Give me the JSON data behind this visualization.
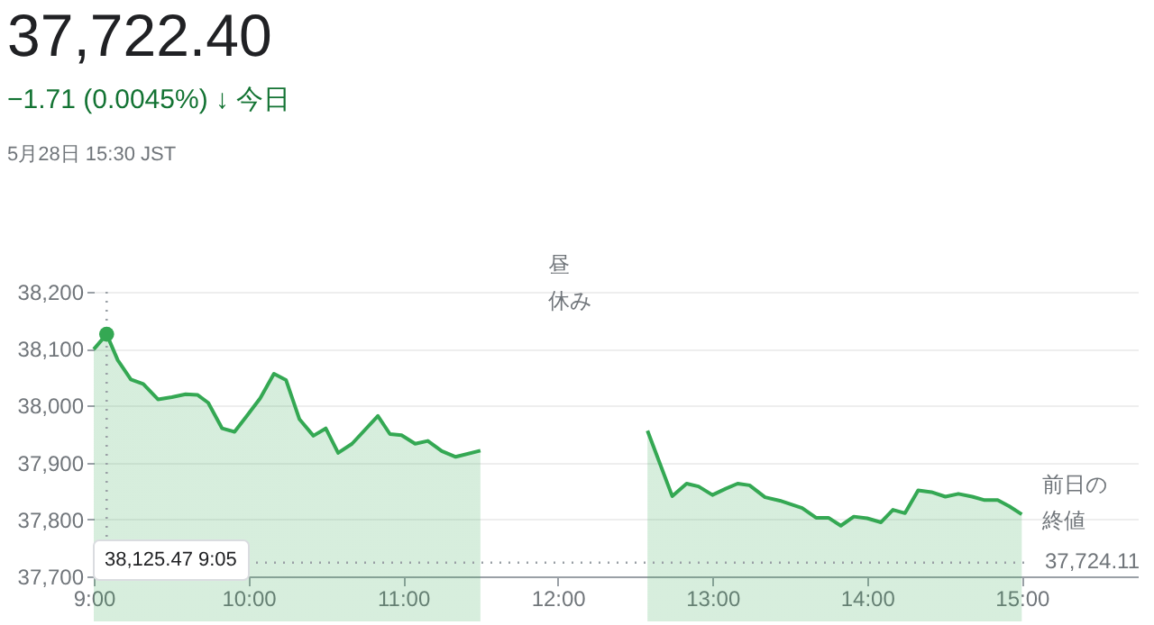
{
  "chart_data": {
    "type": "area",
    "title": "37,722.40",
    "subtitle": "−1.71 (0.0045%) ↓ 今日",
    "annotations": [
      "5月28日 15:30 JST",
      "昼休み",
      "前日の終値",
      "38,125.47 9:05"
    ],
    "series": [
      {
        "type": "area",
        "color": "#34a853",
        "x": [
          9.0,
          9.0833,
          9.155,
          9.24,
          9.32,
          9.415,
          9.505,
          9.594,
          9.67,
          9.74,
          9.83,
          9.91,
          9.99,
          10.076,
          10.165,
          10.243,
          10.33,
          10.42,
          10.5,
          10.58,
          10.67,
          10.837,
          10.915,
          10.99,
          11.078,
          11.16,
          11.25,
          11.34,
          11.5,
          12.0,
          12.58,
          12.74,
          12.833,
          12.91,
          13.0,
          13.086,
          13.163,
          13.24,
          13.34,
          13.436,
          13.58,
          13.67,
          13.75,
          13.83,
          13.914,
          14.0,
          14.09,
          14.167,
          14.245,
          14.33,
          14.416,
          14.506,
          14.59,
          14.68,
          14.76,
          14.844,
          14.92,
          15.0
        ],
        "values": [
          38099,
          38125.47,
          38080,
          38046,
          38038,
          38011,
          38015,
          38020,
          38019,
          38005,
          37960,
          37954,
          37982,
          38013,
          38056,
          38045,
          37976,
          37947,
          37960,
          37917,
          37933,
          37982,
          37950,
          37948,
          37933,
          37938,
          37920,
          37910,
          37921,
          null,
          37956,
          37841,
          37863,
          37858,
          37843,
          37854,
          37863,
          37860,
          37839,
          37833,
          37820,
          37803,
          37803,
          37789,
          37805,
          37802,
          37795,
          37817,
          37811,
          37851,
          37848,
          37840,
          37845,
          37840,
          37834,
          37834,
          37823,
          37809
        ]
      },
      {
        "type": "scatter",
        "color": "#34a853",
        "x": [
          9.0833
        ],
        "values": [
          38125.47
        ]
      }
    ],
    "xlim": [
      9,
      15.75
    ],
    "xticks": [
      {
        "value": 9,
        "label": "9:00"
      },
      {
        "value": 10,
        "label": "10:00"
      },
      {
        "value": 11,
        "label": "11:00"
      },
      {
        "value": 12,
        "label": "12:00"
      },
      {
        "value": 13,
        "label": "13:00"
      },
      {
        "value": 14,
        "label": "14:00"
      },
      {
        "value": 15,
        "label": "15:00"
      }
    ],
    "ylim": [
      37700,
      38200
    ],
    "yticks": [
      {
        "value": 37700,
        "label": "37,700"
      },
      {
        "value": 37800,
        "label": "37,800"
      },
      {
        "value": 37900,
        "label": "37,900"
      },
      {
        "value": 38000,
        "label": "38,000"
      },
      {
        "value": 38100,
        "label": "38,100"
      },
      {
        "value": 38200,
        "label": "38,200"
      }
    ],
    "grid": "y",
    "ref_lines": [
      {
        "axis": "y",
        "value": 37724.11,
        "label": "37,724.11",
        "line_style": "dotted",
        "color": "#9aa0a6"
      },
      {
        "axis": "x",
        "value": 9.0833,
        "line_style": "dotted",
        "color": "#9aa0a6"
      }
    ]
  }
}
